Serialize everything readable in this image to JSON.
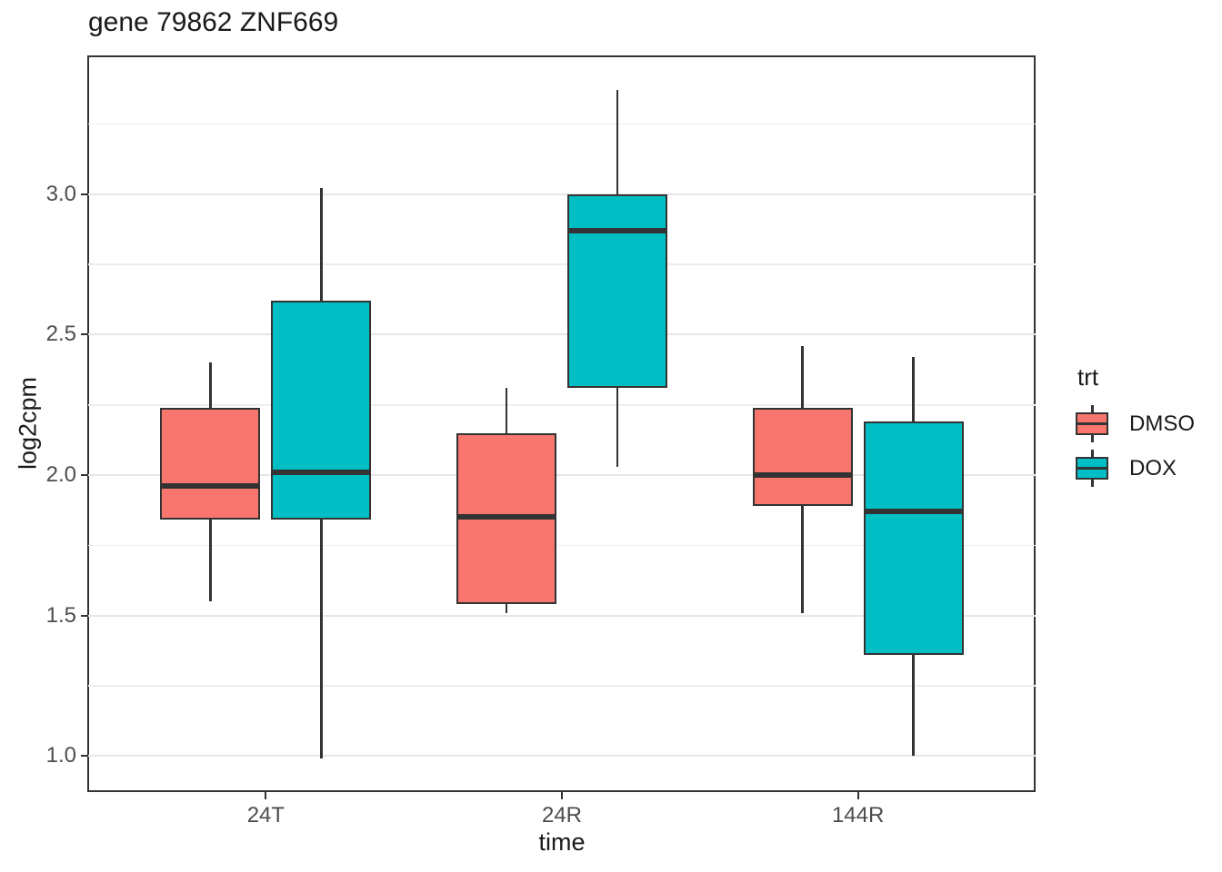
{
  "chart_data": {
    "type": "boxplot",
    "title": "gene 79862 ZNF669",
    "xlabel": "time",
    "ylabel": "log2cpm",
    "categories": [
      "24T",
      "24R",
      "144R"
    ],
    "ylim": [
      0.875,
      3.49
    ],
    "y_major_ticks": [
      1.0,
      1.5,
      2.0,
      2.5,
      3.0
    ],
    "y_minor_ticks": [
      1.25,
      1.75,
      2.25,
      2.75,
      3.25
    ],
    "grid": true,
    "legend": {
      "title": "trt",
      "position": "right",
      "entries": [
        {
          "label": "DMSO",
          "color": "#F8766D"
        },
        {
          "label": "DOX",
          "color": "#00BFC4"
        }
      ]
    },
    "series": [
      {
        "name": "DMSO",
        "color": "#F8766D",
        "boxes": [
          {
            "category": "24T",
            "whisker_low": 1.55,
            "q1": 1.84,
            "median": 1.96,
            "q3": 2.24,
            "whisker_high": 2.4
          },
          {
            "category": "24R",
            "whisker_low": 1.51,
            "q1": 1.54,
            "median": 1.85,
            "q3": 2.15,
            "whisker_high": 2.31
          },
          {
            "category": "144R",
            "whisker_low": 1.51,
            "q1": 1.89,
            "median": 2.0,
            "q3": 2.24,
            "whisker_high": 2.46
          }
        ]
      },
      {
        "name": "DOX",
        "color": "#00BFC4",
        "boxes": [
          {
            "category": "24T",
            "whisker_low": 0.99,
            "q1": 1.84,
            "median": 2.01,
            "q3": 2.62,
            "whisker_high": 3.02
          },
          {
            "category": "24R",
            "whisker_low": 2.03,
            "q1": 2.31,
            "median": 2.87,
            "q3": 3.0,
            "whisker_high": 3.37
          },
          {
            "category": "144R",
            "whisker_low": 1.0,
            "q1": 1.36,
            "median": 1.87,
            "q3": 2.19,
            "whisker_high": 2.42
          }
        ]
      }
    ],
    "colors": {
      "box_stroke": "#333333",
      "panel_border": "#333333",
      "grid_major": "#E6E6E6",
      "grid_minor": "#EDEDED",
      "axis_text": "#4D4D4D",
      "tick_mark": "#333333"
    }
  }
}
